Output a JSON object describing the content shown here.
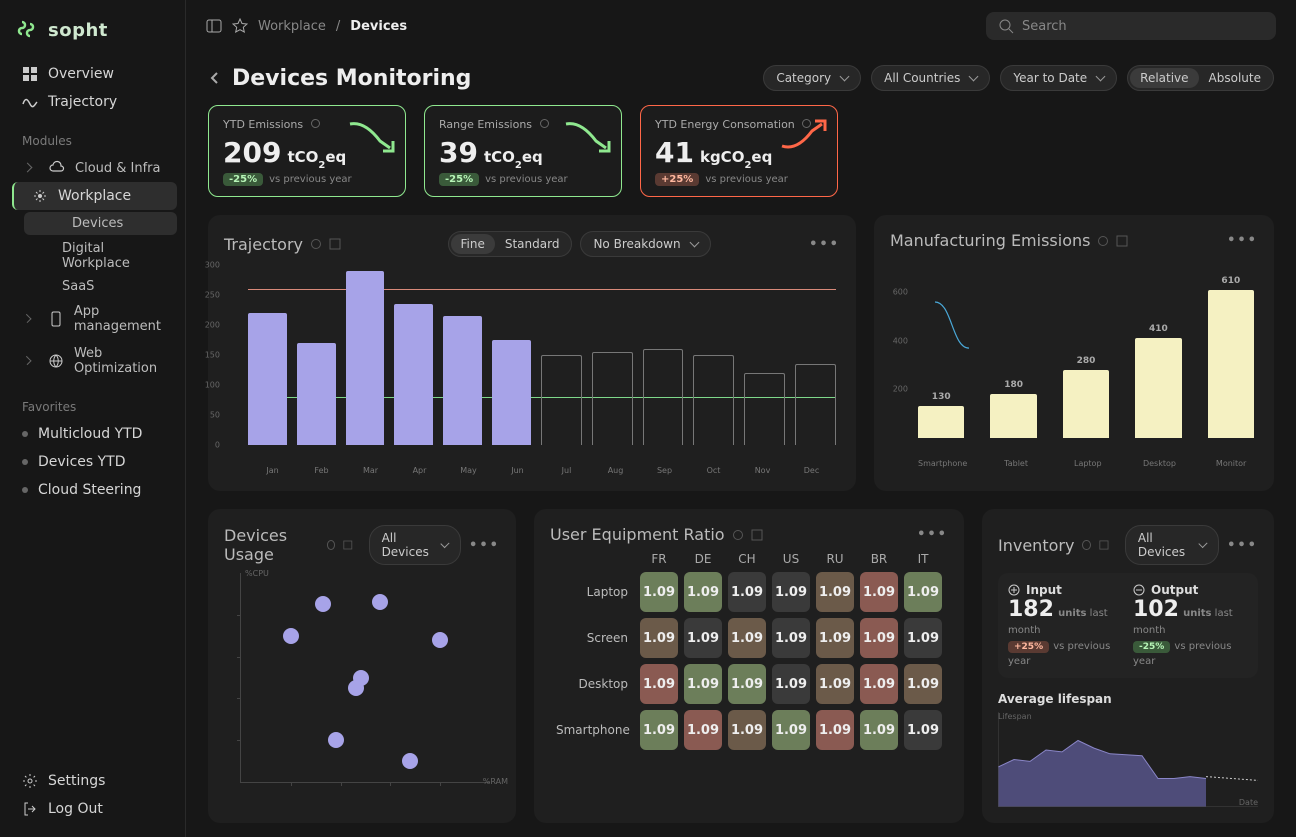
{
  "brand": "sopht",
  "breadcrumb": {
    "a": "Workplace",
    "b": "Devices"
  },
  "search_placeholder": "Search",
  "nav": {
    "overview": "Overview",
    "trajectory": "Trajectory",
    "modules_label": "Modules",
    "cloud": "Cloud & Infra",
    "workplace": "Workplace",
    "app": "App management",
    "web": "Web Optimization",
    "wp_devices": "Devices",
    "wp_digital": "Digital Workplace",
    "wp_saas": "SaaS",
    "fav_label": "Favorites",
    "fav1": "Multicloud YTD",
    "fav2": "Devices YTD",
    "fav3": "Cloud Steering",
    "settings": "Settings",
    "logout": "Log Out"
  },
  "page_title": "Devices Monitoring",
  "filters": {
    "category": "Category",
    "countries": "All Countries",
    "period": "Year to Date",
    "relative": "Relative",
    "absolute": "Absolute"
  },
  "kpis": [
    {
      "label": "YTD Emissions",
      "value": "209",
      "unit_a": "tCO",
      "unit_b": "eq",
      "delta": "-25%",
      "vs": "vs previous year",
      "trend": "down",
      "accent": "#8fe88f"
    },
    {
      "label": "Range Emissions",
      "value": "39",
      "unit_a": "tCO",
      "unit_b": "eq",
      "delta": "-25%",
      "vs": "vs previous year",
      "trend": "down",
      "accent": "#8fe88f"
    },
    {
      "label": "YTD Energy Consomation",
      "value": "41",
      "unit_a": "kgCO",
      "unit_b": "eq",
      "delta": "+25%",
      "vs": "vs previous year",
      "trend": "up",
      "accent": "#ff6748"
    }
  ],
  "trajectory": {
    "title": "Trajectory",
    "toggle": {
      "a": "Fine",
      "b": "Standard"
    },
    "breakdown": "No Breakdown",
    "ylim": [
      0,
      300
    ],
    "yticks": [
      0,
      50,
      100,
      150,
      200,
      250,
      300
    ],
    "red_threshold": 260,
    "green_threshold": 80,
    "months": [
      "Jan",
      "Feb",
      "Mar",
      "Apr",
      "May",
      "Jun",
      "Jul",
      "Aug",
      "Sep",
      "Oct",
      "Nov",
      "Dec"
    ],
    "values": [
      220,
      170,
      290,
      235,
      215,
      175,
      150,
      155,
      160,
      150,
      120,
      135
    ],
    "filled_count": 6,
    "fill_color": "#a7a3e8",
    "hollow_border": "#777",
    "red_line": "#d88a7a",
    "green_line": "#7ed88a"
  },
  "manu": {
    "title": "Manufacturing Emissions",
    "ylim": [
      0,
      700
    ],
    "yticks": [
      200,
      400,
      600
    ],
    "categories": [
      "Smartphone",
      "Tablet",
      "Laptop",
      "Desktop",
      "Monitor"
    ],
    "values": [
      130,
      180,
      280,
      410,
      610
    ],
    "bar_color": "#f5f1c2",
    "line_color": "#4aa8d8",
    "line_y": [
      560,
      370,
      190,
      445,
      390
    ]
  },
  "usage": {
    "title": "Devices Usage",
    "filter": "All Devices",
    "xlabel": "%RAM",
    "ylabel": "%CPU",
    "points": [
      [
        38,
        20
      ],
      [
        68,
        10
      ],
      [
        80,
        68
      ],
      [
        20,
        70
      ],
      [
        46,
        45
      ],
      [
        48,
        50
      ],
      [
        33,
        85
      ],
      [
        56,
        86
      ]
    ],
    "dot_color": "#a7a3e8"
  },
  "ratio": {
    "title": "User Equipment Ratio",
    "cols": [
      "FR",
      "DE",
      "CH",
      "US",
      "RU",
      "BR",
      "IT"
    ],
    "rows": [
      "Laptop",
      "Screen",
      "Desktop",
      "Smartphone"
    ],
    "value": "1.09",
    "colors": [
      [
        "g",
        "g",
        "d",
        "d",
        "b",
        "r",
        "g"
      ],
      [
        "b",
        "d",
        "b",
        "d",
        "b",
        "r",
        "d"
      ],
      [
        "r",
        "g",
        "g",
        "d",
        "b",
        "r",
        "b"
      ],
      [
        "g",
        "r",
        "b",
        "g",
        "r",
        "g",
        "d"
      ]
    ],
    "palette": {
      "g": "#6c7e5a",
      "b": "#6b5a49",
      "d": "#3a3a3a",
      "r": "#8a5a52"
    }
  },
  "inventory": {
    "title": "Inventory",
    "filter": "All Devices",
    "input": {
      "label": "Input",
      "value": "182",
      "units": "units",
      "suffix": "last month",
      "delta": "+25%",
      "vs": "vs previous year"
    },
    "output": {
      "label": "Output",
      "value": "102",
      "units": "units",
      "suffix": "last month",
      "delta": "-25%",
      "vs": "vs previous year"
    },
    "lifespan": {
      "title": "Average lifespan",
      "ylabel": "Lifespan",
      "xlabel": "Date",
      "area_color": "#5a5790",
      "dashed_color": "#cccccc",
      "area_y": [
        42,
        50,
        48,
        60,
        58,
        70,
        62,
        56,
        55,
        54,
        30,
        30,
        32,
        30
      ],
      "dashed_y": [
        32,
        30,
        28
      ]
    }
  }
}
